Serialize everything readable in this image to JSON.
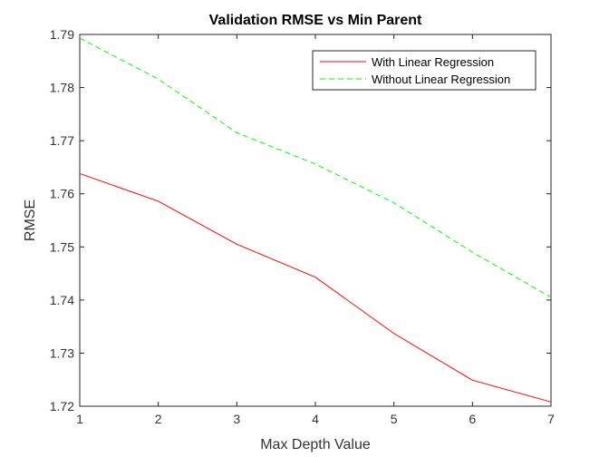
{
  "chart_data": {
    "type": "line",
    "title": "Validation RMSE vs Min Parent",
    "xlabel": "Max Depth Value",
    "ylabel": "RMSE",
    "x": [
      1,
      2,
      3,
      4,
      5,
      6,
      7
    ],
    "xlim": [
      1,
      7
    ],
    "ylim": [
      1.72,
      1.79
    ],
    "xticks": [
      1,
      2,
      3,
      4,
      5,
      6,
      7
    ],
    "yticks": [
      1.72,
      1.73,
      1.74,
      1.75,
      1.76,
      1.77,
      1.78,
      1.79
    ],
    "grid": false,
    "legend_position": "top-right",
    "series": [
      {
        "name": "With Linear Regression",
        "color": "#ff0000",
        "style": "solid",
        "values": [
          1.7638,
          1.7586,
          1.7505,
          1.7443,
          1.7337,
          1.7249,
          1.7208
        ]
      },
      {
        "name": "Without Linear Regression",
        "color": "#00ff00",
        "style": "dashed",
        "values": [
          1.7893,
          1.7816,
          1.7715,
          1.7656,
          1.7583,
          1.749,
          1.7405
        ]
      }
    ]
  }
}
